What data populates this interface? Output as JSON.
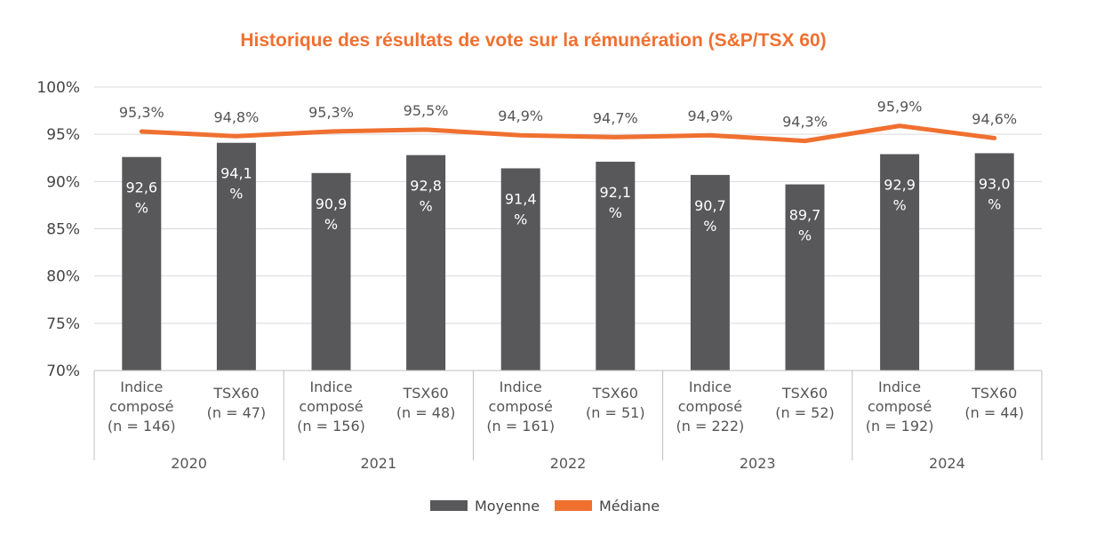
{
  "chart_data": {
    "type": "bar",
    "title": "Historique des résultats de vote sur la rémunération (S&P/TSX 60)",
    "ylim": [
      70,
      100
    ],
    "yticks": [
      "70%",
      "75%",
      "80%",
      "85%",
      "90%",
      "95%",
      "100%"
    ],
    "ytick_values": [
      70,
      75,
      80,
      85,
      90,
      95,
      100
    ],
    "groups": [
      "2020",
      "2021",
      "2022",
      "2023",
      "2024"
    ],
    "categories": [
      {
        "lines": [
          "Indice",
          "composé",
          "(n = 146)"
        ]
      },
      {
        "lines": [
          "TSX60",
          "(n = 47)"
        ]
      },
      {
        "lines": [
          "Indice",
          "composé",
          "(n = 156)"
        ]
      },
      {
        "lines": [
          "TSX60",
          "(n = 48)"
        ]
      },
      {
        "lines": [
          "Indice",
          "composé",
          "(n = 161)"
        ]
      },
      {
        "lines": [
          "TSX60",
          "(n = 51)"
        ]
      },
      {
        "lines": [
          "Indice",
          "composé",
          "(n = 222)"
        ]
      },
      {
        "lines": [
          "TSX60",
          "(n = 52)"
        ]
      },
      {
        "lines": [
          "Indice",
          "composé",
          "(n = 192)"
        ]
      },
      {
        "lines": [
          "TSX60",
          "(n = 44)"
        ]
      }
    ],
    "series": [
      {
        "name": "Moyenne",
        "type": "bar",
        "color": "#58585a",
        "values": [
          92.6,
          94.1,
          90.9,
          92.8,
          91.4,
          92.1,
          90.7,
          89.7,
          92.9,
          93.0
        ],
        "labels": [
          [
            "92,6",
            "%"
          ],
          [
            "94,1",
            "%"
          ],
          [
            "90,9",
            "%"
          ],
          [
            "92,8",
            "%"
          ],
          [
            "91,4",
            "%"
          ],
          [
            "92,1",
            "%"
          ],
          [
            "90,7",
            "%"
          ],
          [
            "89,7",
            "%"
          ],
          [
            "92,9",
            "%"
          ],
          [
            "93,0",
            "%"
          ]
        ]
      },
      {
        "name": "Médiane",
        "type": "line",
        "color": "#f07030",
        "values": [
          95.3,
          94.8,
          95.3,
          95.5,
          94.9,
          94.7,
          94.9,
          94.3,
          95.9,
          94.6
        ],
        "labels": [
          "95,3%",
          "94,8%",
          "95,3%",
          "95,5%",
          "94,9%",
          "94,7%",
          "94,9%",
          "94,3%",
          "95,9%",
          "94,6%"
        ]
      }
    ],
    "legend": [
      "Moyenne",
      "Médiane"
    ],
    "title_color": "#f07030",
    "grid_color": "#d9d9d9"
  }
}
